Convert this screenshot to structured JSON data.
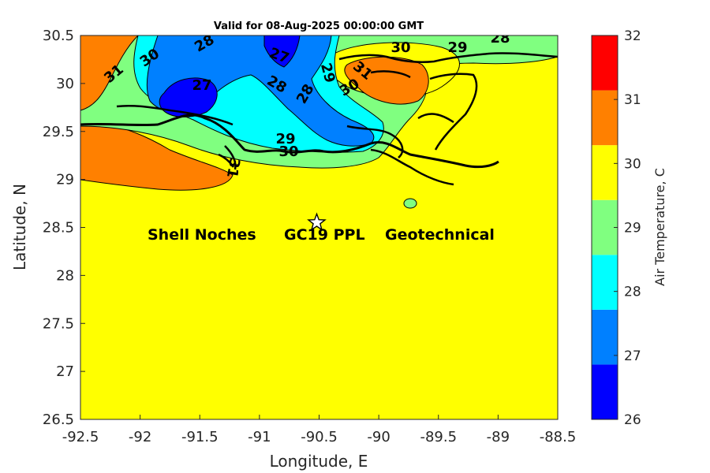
{
  "title": "Valid for 08-Aug-2025 00:00:00 GMT",
  "x_axis": {
    "label": "Longitude, E",
    "ticks": [
      "-92.5",
      "-92",
      "-91.5",
      "-91",
      "-90.5",
      "-90",
      "-89.5",
      "-89",
      "-88.5"
    ],
    "range": [
      -92.5,
      -88.5
    ]
  },
  "y_axis": {
    "label": "Latitude, N",
    "ticks": [
      "26.5",
      "27",
      "27.5",
      "28",
      "28.5",
      "29",
      "29.5",
      "30",
      "30.5"
    ],
    "range": [
      26.5,
      30.5
    ]
  },
  "colorbar": {
    "label": "Air Temperature, C",
    "ticks": [
      "26",
      "27",
      "28",
      "29",
      "30",
      "31",
      "32"
    ],
    "range": [
      26,
      32
    ],
    "colors": [
      "#0000ff",
      "#0080ff",
      "#00ffff",
      "#80ff80",
      "#ffff00",
      "#ff8000",
      "#ff0000"
    ]
  },
  "contour_labels": [
    "31",
    "30",
    "28",
    "27",
    "27",
    "28",
    "28",
    "29",
    "31",
    "30",
    "30",
    "29",
    "28",
    "29",
    "30",
    "31"
  ],
  "site": {
    "marker": "star-marker",
    "lon": -90.52,
    "lat": 28.55,
    "label_parts": [
      "Shell Noches",
      "GC19 PPL",
      "Geotechnical"
    ]
  },
  "chart_data": {
    "type": "heatmap",
    "title": "Valid for 08-Aug-2025 00:00:00 GMT",
    "xlabel": "Longitude, E",
    "ylabel": "Latitude, N",
    "xlim": [
      -92.5,
      -88.5
    ],
    "ylim": [
      26.5,
      30.5
    ],
    "color_scale": {
      "label": "Air Temperature, C",
      "min": 26,
      "max": 32,
      "levels": [
        26,
        27,
        28,
        29,
        30,
        31,
        32
      ]
    },
    "contour_levels_labeled": [
      27,
      28,
      29,
      30,
      31
    ],
    "point_annotation": {
      "lon": -90.52,
      "lat": 28.55,
      "text": "Shell Noches GC19 PPL Geotechnical"
    }
  }
}
